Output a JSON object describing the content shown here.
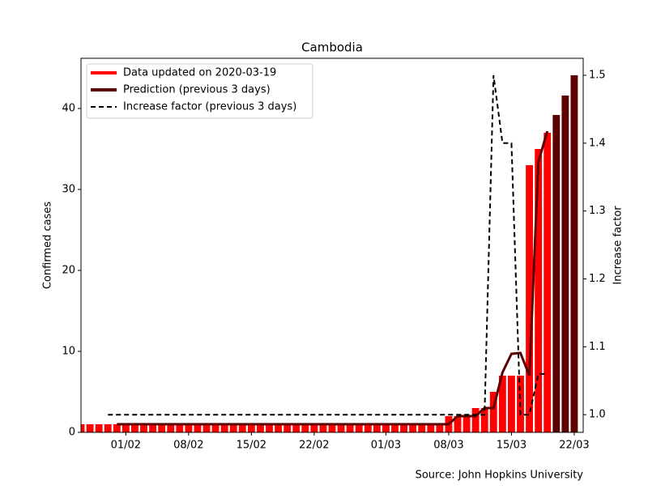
{
  "chart_data": {
    "type": "bar",
    "title": "Cambodia",
    "ylabel": "Confirmed cases",
    "y2label": "Increase factor",
    "annotation": "Source: John Hopkins University",
    "x": [
      "27/01",
      "28/01",
      "29/01",
      "30/01",
      "31/01",
      "01/02",
      "02/02",
      "03/02",
      "04/02",
      "05/02",
      "06/02",
      "07/02",
      "08/02",
      "09/02",
      "10/02",
      "11/02",
      "12/02",
      "13/02",
      "14/02",
      "15/02",
      "16/02",
      "17/02",
      "18/02",
      "19/02",
      "20/02",
      "21/02",
      "22/02",
      "23/02",
      "24/02",
      "25/02",
      "26/02",
      "27/02",
      "28/02",
      "29/02",
      "01/03",
      "02/03",
      "03/03",
      "04/03",
      "05/03",
      "06/03",
      "07/03",
      "08/03",
      "09/03",
      "10/03",
      "11/03",
      "12/03",
      "13/03",
      "14/03",
      "15/03",
      "16/03",
      "17/03",
      "18/03",
      "19/03",
      "20/03",
      "21/03",
      "22/03"
    ],
    "xticks": [
      "01/02",
      "08/02",
      "15/02",
      "22/02",
      "01/03",
      "08/03",
      "15/03",
      "22/03"
    ],
    "ylim": [
      0,
      46.2
    ],
    "yticks": [
      0,
      10,
      20,
      30,
      40
    ],
    "y2lim": [
      0.974,
      1.525
    ],
    "y2ticks": [
      {
        "value": 1,
        "label": "1.0"
      },
      1.1,
      1.2,
      1.3,
      1.4,
      1.5
    ],
    "legend": "upper left",
    "series": [
      {
        "name": "Data updated on 2020-03-19",
        "color": "#ff0000",
        "values": [
          1,
          1,
          1,
          1,
          1,
          1,
          1,
          1,
          1,
          1,
          1,
          1,
          1,
          1,
          1,
          1,
          1,
          1,
          1,
          1,
          1,
          1,
          1,
          1,
          1,
          1,
          1,
          1,
          1,
          1,
          1,
          1,
          1,
          1,
          1,
          1,
          1,
          1,
          1,
          1,
          1,
          2,
          2,
          2,
          3,
          3,
          5,
          7,
          7,
          7,
          33,
          35,
          37,
          null,
          null,
          null
        ]
      },
      {
        "name": "Prediction (previous 3 days)",
        "color": "#5c0000",
        "values": [
          null,
          null,
          null,
          null,
          1,
          1,
          1,
          1,
          1,
          1,
          1,
          1,
          1,
          1,
          1,
          1,
          1,
          1,
          1,
          1,
          1,
          1,
          1,
          1,
          1,
          1,
          1,
          1,
          1,
          1,
          1,
          1,
          1,
          1,
          1,
          1,
          1,
          1,
          1,
          1,
          1,
          1,
          2,
          2,
          2,
          3,
          3,
          7.4,
          9.7,
          9.8,
          7,
          33.4,
          37.2,
          39.2,
          41.6,
          44.1
        ]
      },
      {
        "name": "Increase factor (previous 3 days)",
        "color": "#000000",
        "axis": "y2",
        "dashed": true,
        "values": [
          null,
          null,
          null,
          1,
          1,
          1,
          1,
          1,
          1,
          1,
          1,
          1,
          1,
          1,
          1,
          1,
          1,
          1,
          1,
          1,
          1,
          1,
          1,
          1,
          1,
          1,
          1,
          1,
          1,
          1,
          1,
          1,
          1,
          1,
          1,
          1,
          1,
          1,
          1,
          1,
          1,
          1,
          1,
          1,
          1,
          1,
          1.5,
          1.4,
          1.4,
          1,
          1,
          1.06,
          1.06,
          null,
          null,
          null
        ]
      }
    ]
  }
}
